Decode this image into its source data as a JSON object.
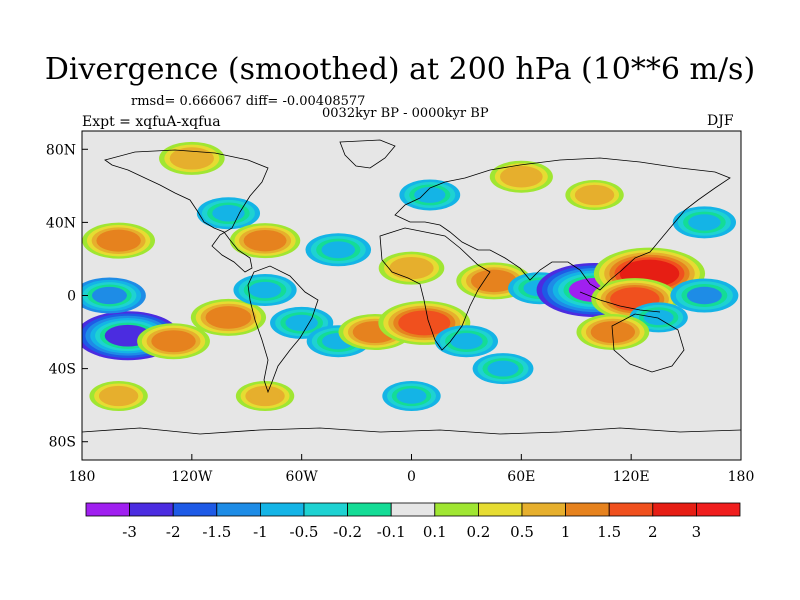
{
  "figure": {
    "title": "Divergence (smoothed) at 200 hPa (10**6 m/s)",
    "stats": "rmsd= 0.666067 diff= -0.00408577",
    "period": "0032kyr BP - 0000kyr BP",
    "experiment": "Expt = xqfuA-xqfua",
    "season": "DJF"
  },
  "chart_data": {
    "type": "heatmap",
    "title": "Divergence (smoothed) at 200 hPa (10**6 m/s)",
    "xlabel": "",
    "ylabel": "",
    "xlim": [
      -180,
      180
    ],
    "ylim": [
      -90,
      90
    ],
    "x_ticks": [
      {
        "value": -180,
        "label": "180"
      },
      {
        "value": -120,
        "label": "120W"
      },
      {
        "value": -60,
        "label": "60W"
      },
      {
        "value": 0,
        "label": "0"
      },
      {
        "value": 60,
        "label": "60E"
      },
      {
        "value": 120,
        "label": "120E"
      },
      {
        "value": 180,
        "label": "180"
      }
    ],
    "y_ticks": [
      {
        "value": 80,
        "label": "80N"
      },
      {
        "value": 40,
        "label": "40N"
      },
      {
        "value": 0,
        "label": "0"
      },
      {
        "value": -40,
        "label": "40S"
      },
      {
        "value": -80,
        "label": "80S"
      }
    ],
    "colorbar": {
      "labels": [
        "-3",
        "-2",
        "-1.5",
        "-1",
        "-0.5",
        "-0.2",
        "-0.1",
        "0.1",
        "0.2",
        "0.5",
        "1",
        "1.5",
        "2",
        "3"
      ],
      "colors": [
        "#a020f0",
        "#4b2ce0",
        "#1e5ae6",
        "#1e8ce6",
        "#14b4e6",
        "#1ed2d2",
        "#14dc96",
        "#e6e6e6",
        "#a0e632",
        "#e6dc32",
        "#e6af2d",
        "#e6821e",
        "#f0501e",
        "#e61e14",
        "#f01e1e"
      ]
    },
    "features": [
      {
        "lon": -155,
        "lat": -22,
        "value": -2.5
      },
      {
        "lon": -130,
        "lat": -25,
        "value": 1.2
      },
      {
        "lon": -100,
        "lat": -12,
        "value": 1.3
      },
      {
        "lon": -165,
        "lat": 0,
        "value": -1.2
      },
      {
        "lon": -80,
        "lat": 3,
        "value": -0.8
      },
      {
        "lon": -60,
        "lat": -15,
        "value": -0.8
      },
      {
        "lon": -40,
        "lat": -25,
        "value": -0.8
      },
      {
        "lon": -20,
        "lat": -20,
        "value": 1.2
      },
      {
        "lon": 7,
        "lat": -15,
        "value": 2.0
      },
      {
        "lon": 30,
        "lat": -25,
        "value": -0.8
      },
      {
        "lon": 45,
        "lat": 8,
        "value": 1.3
      },
      {
        "lon": 70,
        "lat": 4,
        "value": -0.8
      },
      {
        "lon": 100,
        "lat": 3,
        "value": -3.0
      },
      {
        "lon": 130,
        "lat": 12,
        "value": 2.8
      },
      {
        "lon": 122,
        "lat": -2,
        "value": 1.8
      },
      {
        "lon": 135,
        "lat": -12,
        "value": -0.6
      },
      {
        "lon": 110,
        "lat": -20,
        "value": 1.2
      },
      {
        "lon": 160,
        "lat": 0,
        "value": -1.0
      },
      {
        "lon": -160,
        "lat": 30,
        "value": 1.2
      },
      {
        "lon": -100,
        "lat": 45,
        "value": -0.8
      },
      {
        "lon": -80,
        "lat": 30,
        "value": 1.1
      },
      {
        "lon": -40,
        "lat": 25,
        "value": -0.9
      },
      {
        "lon": 0,
        "lat": 15,
        "value": 0.9
      },
      {
        "lon": 10,
        "lat": 55,
        "value": -0.7
      },
      {
        "lon": 60,
        "lat": 65,
        "value": 0.8
      },
      {
        "lon": 100,
        "lat": 55,
        "value": 0.6
      },
      {
        "lon": 160,
        "lat": 40,
        "value": -0.8
      },
      {
        "lon": -120,
        "lat": 75,
        "value": 0.9
      },
      {
        "lon": -160,
        "lat": -55,
        "value": 0.6
      },
      {
        "lon": 50,
        "lat": -40,
        "value": -0.7
      },
      {
        "lon": -80,
        "lat": -55,
        "value": 0.6
      },
      {
        "lon": 0,
        "lat": -55,
        "value": -0.6
      }
    ]
  }
}
